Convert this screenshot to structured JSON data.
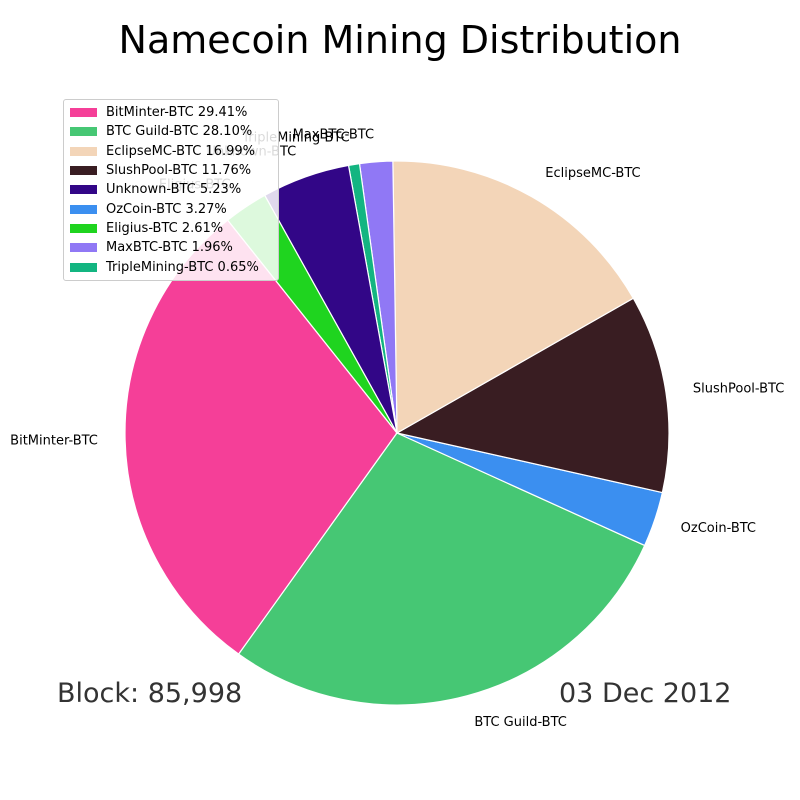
{
  "chart_data": {
    "type": "pie",
    "title": "Namecoin Mining Distribution",
    "slices": [
      {
        "label": "BitMinter-BTC",
        "legend": "BitMinter-BTC 29.41%",
        "value": 29.41,
        "color": "#f53f98"
      },
      {
        "label": "BTC Guild-BTC",
        "legend": "BTC Guild-BTC 28.10%",
        "value": 28.1,
        "color": "#46c774"
      },
      {
        "label": "EclipseMC-BTC",
        "legend": "EclipseMC-BTC 16.99%",
        "value": 16.99,
        "color": "#f3d5b8"
      },
      {
        "label": "SlushPool-BTC",
        "legend": "SlushPool-BTC 11.76%",
        "value": 11.76,
        "color": "#391d22"
      },
      {
        "label": "Unknown-BTC",
        "legend": "Unknown-BTC 5.23%",
        "value": 5.23,
        "color": "#320687"
      },
      {
        "label": "OzCoin-BTC",
        "legend": "OzCoin-BTC 3.27%",
        "value": 3.27,
        "color": "#3b8ff0"
      },
      {
        "label": "Eligius-BTC",
        "legend": "Eligius-BTC 2.61%",
        "value": 2.61,
        "color": "#1fd41f"
      },
      {
        "label": "MaxBTC-BTC",
        "legend": "MaxBTC-BTC 1.96%",
        "value": 1.96,
        "color": "#9078f5"
      },
      {
        "label": "TripleMining-BTC",
        "legend": "TripleMining-BTC 0.65%",
        "value": 0.65,
        "color": "#13b581"
      }
    ],
    "legend_position": "top-left"
  },
  "footer": {
    "block": "Block: 85,998",
    "date": "03 Dec 2012"
  }
}
